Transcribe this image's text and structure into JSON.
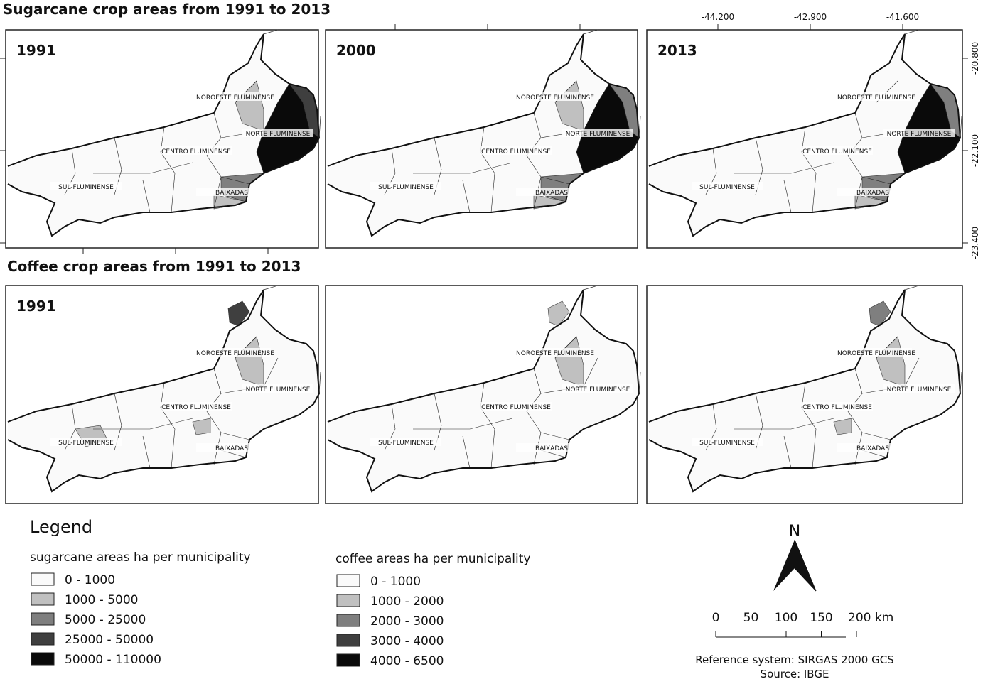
{
  "sugarcane": {
    "title": "Sugarcane crop areas from 1991 to 2013",
    "years": [
      "1991",
      "2000",
      "2013"
    ]
  },
  "coffee": {
    "title": "Coffee crop areas from 1991 to 2013",
    "year": "1991"
  },
  "region_labels": [
    "NOROESTE FLUMINENSE",
    "NORTE FLUMINENSE",
    "CENTRO FLUMINENSE",
    "SUL-FLUMINENSE",
    "BAIXADAS"
  ],
  "longitude_labels": [
    "-44.200",
    "-42.900",
    "-41.600"
  ],
  "latitude_labels": [
    "-20.800",
    "-22.100",
    "-23.400"
  ],
  "legend": {
    "title": "Legend",
    "sugarcane": {
      "title": "sugarcane areas ha per municipality",
      "classes": [
        {
          "label": "0 - 1000",
          "color": "#fafafa"
        },
        {
          "label": "1000 - 5000",
          "color": "#c0c0c0"
        },
        {
          "label": "5000 - 25000",
          "color": "#7f7f7f"
        },
        {
          "label": "25000 - 50000",
          "color": "#3f3f3f"
        },
        {
          "label": "50000 - 110000",
          "color": "#0a0a0a"
        }
      ]
    },
    "coffee": {
      "title": "coffee areas ha per municipality",
      "classes": [
        {
          "label": "0 - 1000",
          "color": "#fafafa"
        },
        {
          "label": "1000 - 2000",
          "color": "#c0c0c0"
        },
        {
          "label": "2000 - 3000",
          "color": "#7f7f7f"
        },
        {
          "label": "3000 - 4000",
          "color": "#3f3f3f"
        },
        {
          "label": "4000 - 6500",
          "color": "#0a0a0a"
        }
      ]
    }
  },
  "north_arrow": "N",
  "scale_bar": [
    "0",
    "50",
    "100",
    "150",
    "200 km"
  ],
  "reference": "Reference system: SIRGAS 2000 GCS",
  "source": "Source: IBGE"
}
